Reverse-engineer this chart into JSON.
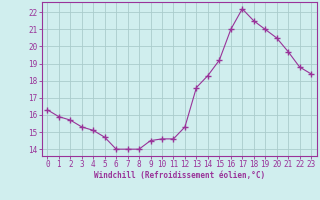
{
  "x": [
    0,
    1,
    2,
    3,
    4,
    5,
    6,
    7,
    8,
    9,
    10,
    11,
    12,
    13,
    14,
    15,
    16,
    17,
    18,
    19,
    20,
    21,
    22,
    23
  ],
  "y": [
    16.3,
    15.9,
    15.7,
    15.3,
    15.1,
    14.7,
    14.0,
    14.0,
    14.0,
    14.5,
    14.6,
    14.6,
    15.3,
    17.6,
    18.3,
    19.2,
    21.0,
    22.2,
    21.5,
    21.0,
    20.5,
    19.7,
    18.8,
    18.4
  ],
  "line_color": "#993399",
  "marker": "+",
  "marker_size": 4,
  "bg_color": "#d0eeee",
  "grid_color": "#aacccc",
  "ylabel_ticks": [
    14,
    15,
    16,
    17,
    18,
    19,
    20,
    21,
    22
  ],
  "xlabel": "Windchill (Refroidissement éolien,°C)",
  "ylim": [
    13.6,
    22.6
  ],
  "xlim": [
    -0.5,
    23.5
  ],
  "tick_fontsize": 5.5,
  "label_fontsize": 5.5
}
